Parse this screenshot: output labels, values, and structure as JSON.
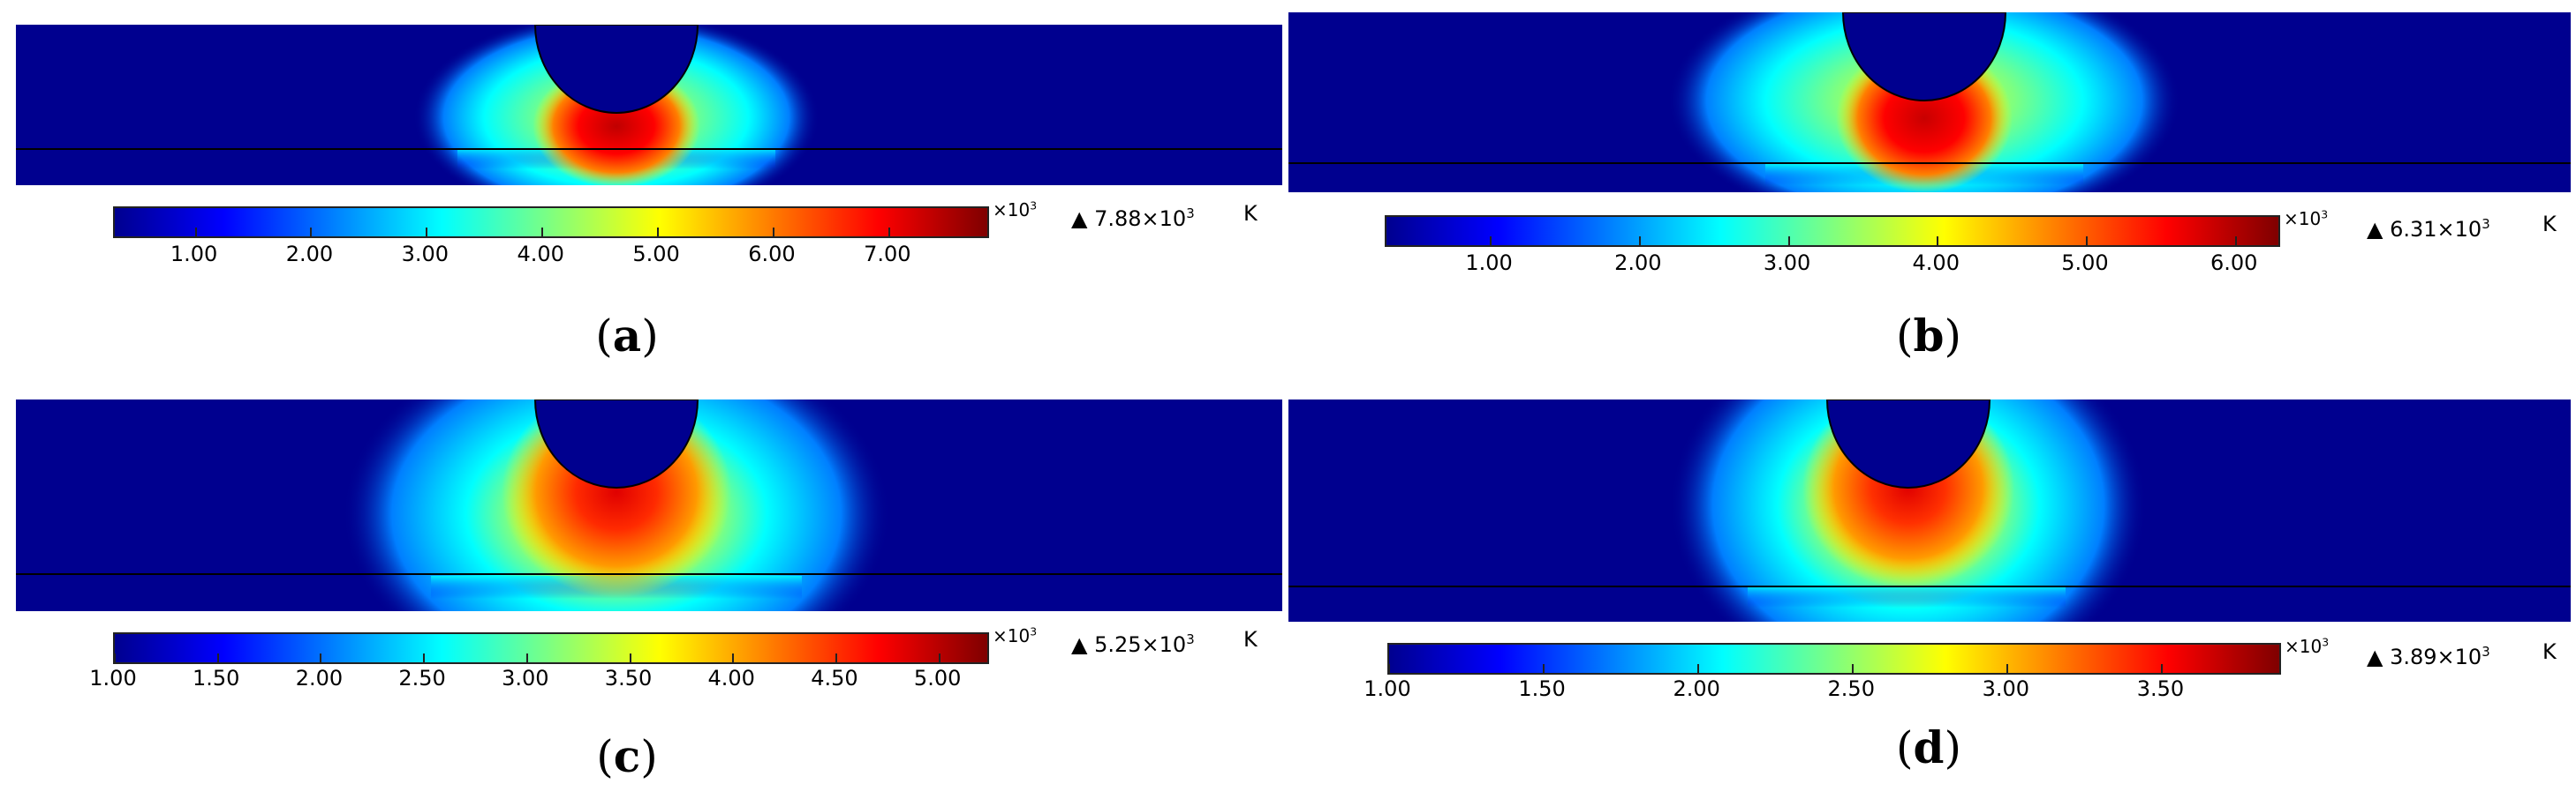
{
  "chart_data": [
    {
      "type": "heatmap",
      "label": "a",
      "unit": "K",
      "multiplier_base": "×10",
      "multiplier_exp": "3",
      "max_mantissa": "7.88",
      "max_value": 7880,
      "min_value": 300,
      "colorbar_ticks": [
        "1.00",
        "2.00",
        "3.00",
        "4.00",
        "5.00",
        "6.00",
        "7.00"
      ],
      "colormap": [
        "#00008f",
        "#0000ff",
        "#007fff",
        "#00ffff",
        "#7fff7f",
        "#ffff00",
        "#ff7f00",
        "#ff0000",
        "#7f0000"
      ]
    },
    {
      "type": "heatmap",
      "label": "b",
      "unit": "K",
      "multiplier_base": "×10",
      "multiplier_exp": "3",
      "max_mantissa": "6.31",
      "max_value": 6310,
      "min_value": 300,
      "colorbar_ticks": [
        "1.00",
        "2.00",
        "3.00",
        "4.00",
        "5.00",
        "6.00"
      ],
      "colormap": [
        "#00008f",
        "#0000ff",
        "#007fff",
        "#00ffff",
        "#7fff7f",
        "#ffff00",
        "#ff7f00",
        "#ff0000",
        "#7f0000"
      ]
    },
    {
      "type": "heatmap",
      "label": "c",
      "unit": "K",
      "multiplier_base": "×10",
      "multiplier_exp": "3",
      "max_mantissa": "5.25",
      "max_value": 5250,
      "min_value": 1000,
      "colorbar_ticks": [
        "1.00",
        "1.50",
        "2.00",
        "2.50",
        "3.00",
        "3.50",
        "4.00",
        "4.50",
        "5.00"
      ],
      "colormap": [
        "#00008f",
        "#0000ff",
        "#007fff",
        "#00ffff",
        "#7fff7f",
        "#ffff00",
        "#ff7f00",
        "#ff0000",
        "#7f0000"
      ]
    },
    {
      "type": "heatmap",
      "label": "d",
      "unit": "K",
      "multiplier_base": "×10",
      "multiplier_exp": "3",
      "max_mantissa": "3.89",
      "max_value": 3890,
      "min_value": 1000,
      "colorbar_ticks": [
        "1.00",
        "1.50",
        "2.00",
        "2.50",
        "3.00",
        "3.50"
      ],
      "colormap": [
        "#00008f",
        "#0000ff",
        "#007fff",
        "#00ffff",
        "#7fff7f",
        "#ffff00",
        "#ff7f00",
        "#ff0000",
        "#7f0000"
      ]
    }
  ]
}
